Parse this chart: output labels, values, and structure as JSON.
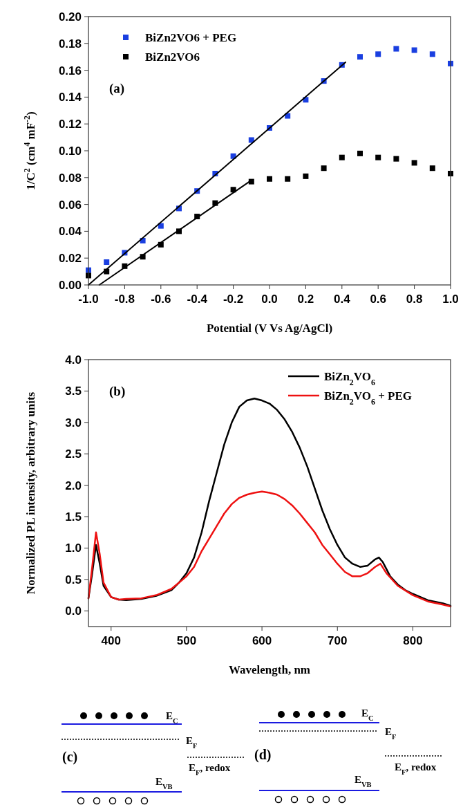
{
  "chart_data": [
    {
      "type": "scatter",
      "xlabel": "Potential (V Vs Ag/AgCl)",
      "ylabel": "1/C$^{2}$ (cm$^{4}$ mF$^{-2}$)",
      "annotations": [
        "(a)"
      ],
      "legend": "top left",
      "x": [
        -1.0,
        -0.9,
        -0.8,
        -0.7,
        -0.6,
        -0.5,
        -0.4,
        -0.3,
        -0.2,
        -0.1,
        0.0,
        0.1,
        0.2,
        0.3,
        0.4,
        0.5,
        0.6,
        0.7,
        0.8,
        0.9,
        1.0
      ],
      "xlim": [
        -1.0,
        1.0
      ],
      "xticks": [
        {
          "value": -1.0,
          "label": "-1.0"
        },
        {
          "value": -0.8,
          "label": "-0.8"
        },
        {
          "value": -0.6,
          "label": "-0.6"
        },
        {
          "value": -0.4,
          "label": "-0.4"
        },
        {
          "value": -0.2,
          "label": "-0.2"
        },
        {
          "value": 0,
          "label": "0.0"
        },
        {
          "value": 0.2,
          "label": "0.2"
        },
        {
          "value": 0.4,
          "label": "0.4"
        },
        {
          "value": 0.6,
          "label": "0.6"
        },
        {
          "value": 0.8,
          "label": "0.8"
        },
        {
          "value": 1.0,
          "label": "1.0"
        }
      ],
      "ylim": [
        0,
        0.2
      ],
      "yticks": [
        {
          "value": 0,
          "label": "0.00"
        },
        {
          "value": 0.02,
          "label": "0.02"
        },
        {
          "value": 0.04,
          "label": "0.04"
        },
        {
          "value": 0.06,
          "label": "0.06"
        },
        {
          "value": 0.08,
          "label": "0.08"
        },
        {
          "value": 0.1,
          "label": "0.10"
        },
        {
          "value": 0.12,
          "label": "0.12"
        },
        {
          "value": 0.14,
          "label": "0.14"
        },
        {
          "value": 0.16,
          "label": "0.16"
        },
        {
          "value": 0.18,
          "label": "0.18"
        },
        {
          "value": 0.2,
          "label": "0.20"
        }
      ],
      "series": [
        {
          "name": "BiZn2VO6 + PEG",
          "color": "#1a3fe0",
          "marker": "square",
          "values": [
            0.011,
            0.017,
            0.024,
            0.033,
            0.044,
            0.057,
            0.07,
            0.083,
            0.096,
            0.108,
            0.117,
            0.126,
            0.138,
            0.152,
            0.164,
            0.17,
            0.172,
            0.176,
            0.175,
            0.172,
            0.165
          ]
        },
        {
          "name": "BiZn2VO6",
          "color": "#000000",
          "marker": "square",
          "values": [
            0.007,
            0.01,
            0.014,
            0.021,
            0.03,
            0.04,
            0.051,
            0.061,
            0.071,
            0.077,
            0.079,
            0.079,
            0.081,
            0.087,
            0.095,
            0.098,
            0.095,
            0.094,
            0.091,
            0.087,
            0.083
          ]
        },
        {
          "type": "line",
          "color": "#000000",
          "marker": "none",
          "x": [
            -1.0,
            0.42
          ],
          "values": [
            0,
            0.166
          ]
        },
        {
          "type": "line",
          "color": "#000000",
          "marker": "none",
          "x": [
            -0.94,
            -0.1
          ],
          "values": [
            0,
            0.078
          ]
        }
      ]
    },
    {
      "type": "line",
      "xlabel": "Wavelength, nm",
      "ylabel": "Normalized PL intensity, arbitrary units",
      "annotations": [
        "(b)"
      ],
      "legend": "top right",
      "xlim": [
        370,
        850
      ],
      "xticks": [
        400,
        500,
        600,
        700,
        800
      ],
      "ylim": [
        -0.25,
        4.0
      ],
      "yticks": [
        {
          "value": 0,
          "label": "0.0"
        },
        {
          "value": 0.5,
          "label": "0.5"
        },
        {
          "value": 1,
          "label": "1.0"
        },
        {
          "value": 1.5,
          "label": "1.5"
        },
        {
          "value": 2,
          "label": "2.0"
        },
        {
          "value": 2.5,
          "label": "2.5"
        },
        {
          "value": 3,
          "label": "3.0"
        },
        {
          "value": 3.5,
          "label": "3.5"
        },
        {
          "value": 4,
          "label": "4.0"
        }
      ],
      "series": [
        {
          "name": "BiZn$_{2}$VO$_{6}$",
          "color": "#000000",
          "x": [
            370,
            375,
            380,
            385,
            390,
            400,
            410,
            420,
            440,
            460,
            480,
            490,
            500,
            510,
            520,
            530,
            540,
            550,
            560,
            570,
            580,
            590,
            600,
            610,
            620,
            630,
            640,
            650,
            660,
            670,
            680,
            690,
            700,
            710,
            720,
            730,
            740,
            750,
            755,
            760,
            770,
            780,
            790,
            800,
            820,
            840,
            850
          ],
          "values": [
            0.2,
            0.6,
            1.05,
            0.75,
            0.4,
            0.22,
            0.18,
            0.17,
            0.19,
            0.24,
            0.33,
            0.45,
            0.6,
            0.85,
            1.25,
            1.75,
            2.2,
            2.65,
            3.0,
            3.25,
            3.35,
            3.38,
            3.35,
            3.3,
            3.2,
            3.05,
            2.85,
            2.6,
            2.3,
            1.95,
            1.6,
            1.3,
            1.05,
            0.85,
            0.75,
            0.7,
            0.72,
            0.82,
            0.85,
            0.78,
            0.55,
            0.42,
            0.33,
            0.27,
            0.17,
            0.12,
            0.08
          ]
        },
        {
          "name": "BiZn$_{2}$VO$_{6}$ + PEG",
          "color": "#ee1111",
          "x": [
            370,
            375,
            380,
            385,
            390,
            400,
            410,
            420,
            440,
            460,
            480,
            490,
            500,
            510,
            520,
            530,
            540,
            550,
            560,
            570,
            580,
            590,
            600,
            610,
            620,
            630,
            640,
            650,
            660,
            670,
            680,
            690,
            700,
            710,
            720,
            730,
            740,
            750,
            757,
            765,
            780,
            800,
            820,
            840,
            850
          ],
          "values": [
            0.2,
            0.7,
            1.25,
            0.9,
            0.45,
            0.22,
            0.18,
            0.19,
            0.2,
            0.25,
            0.35,
            0.45,
            0.55,
            0.7,
            0.95,
            1.15,
            1.35,
            1.55,
            1.7,
            1.8,
            1.85,
            1.88,
            1.9,
            1.88,
            1.85,
            1.78,
            1.68,
            1.55,
            1.4,
            1.25,
            1.05,
            0.9,
            0.75,
            0.62,
            0.55,
            0.55,
            0.6,
            0.7,
            0.75,
            0.6,
            0.4,
            0.25,
            0.15,
            0.1,
            0.07
          ]
        }
      ]
    },
    {
      "type": "other",
      "annotations": [
        "(c)",
        "E$_{C}$",
        "E$_{F}$",
        "E$_{F}$, redox",
        "E$_{VB}$",
        "(d)",
        "E$_{C}$",
        "E$_{F}$",
        "E$_{F}$, redox",
        "E$_{VB}$"
      ]
    }
  ]
}
